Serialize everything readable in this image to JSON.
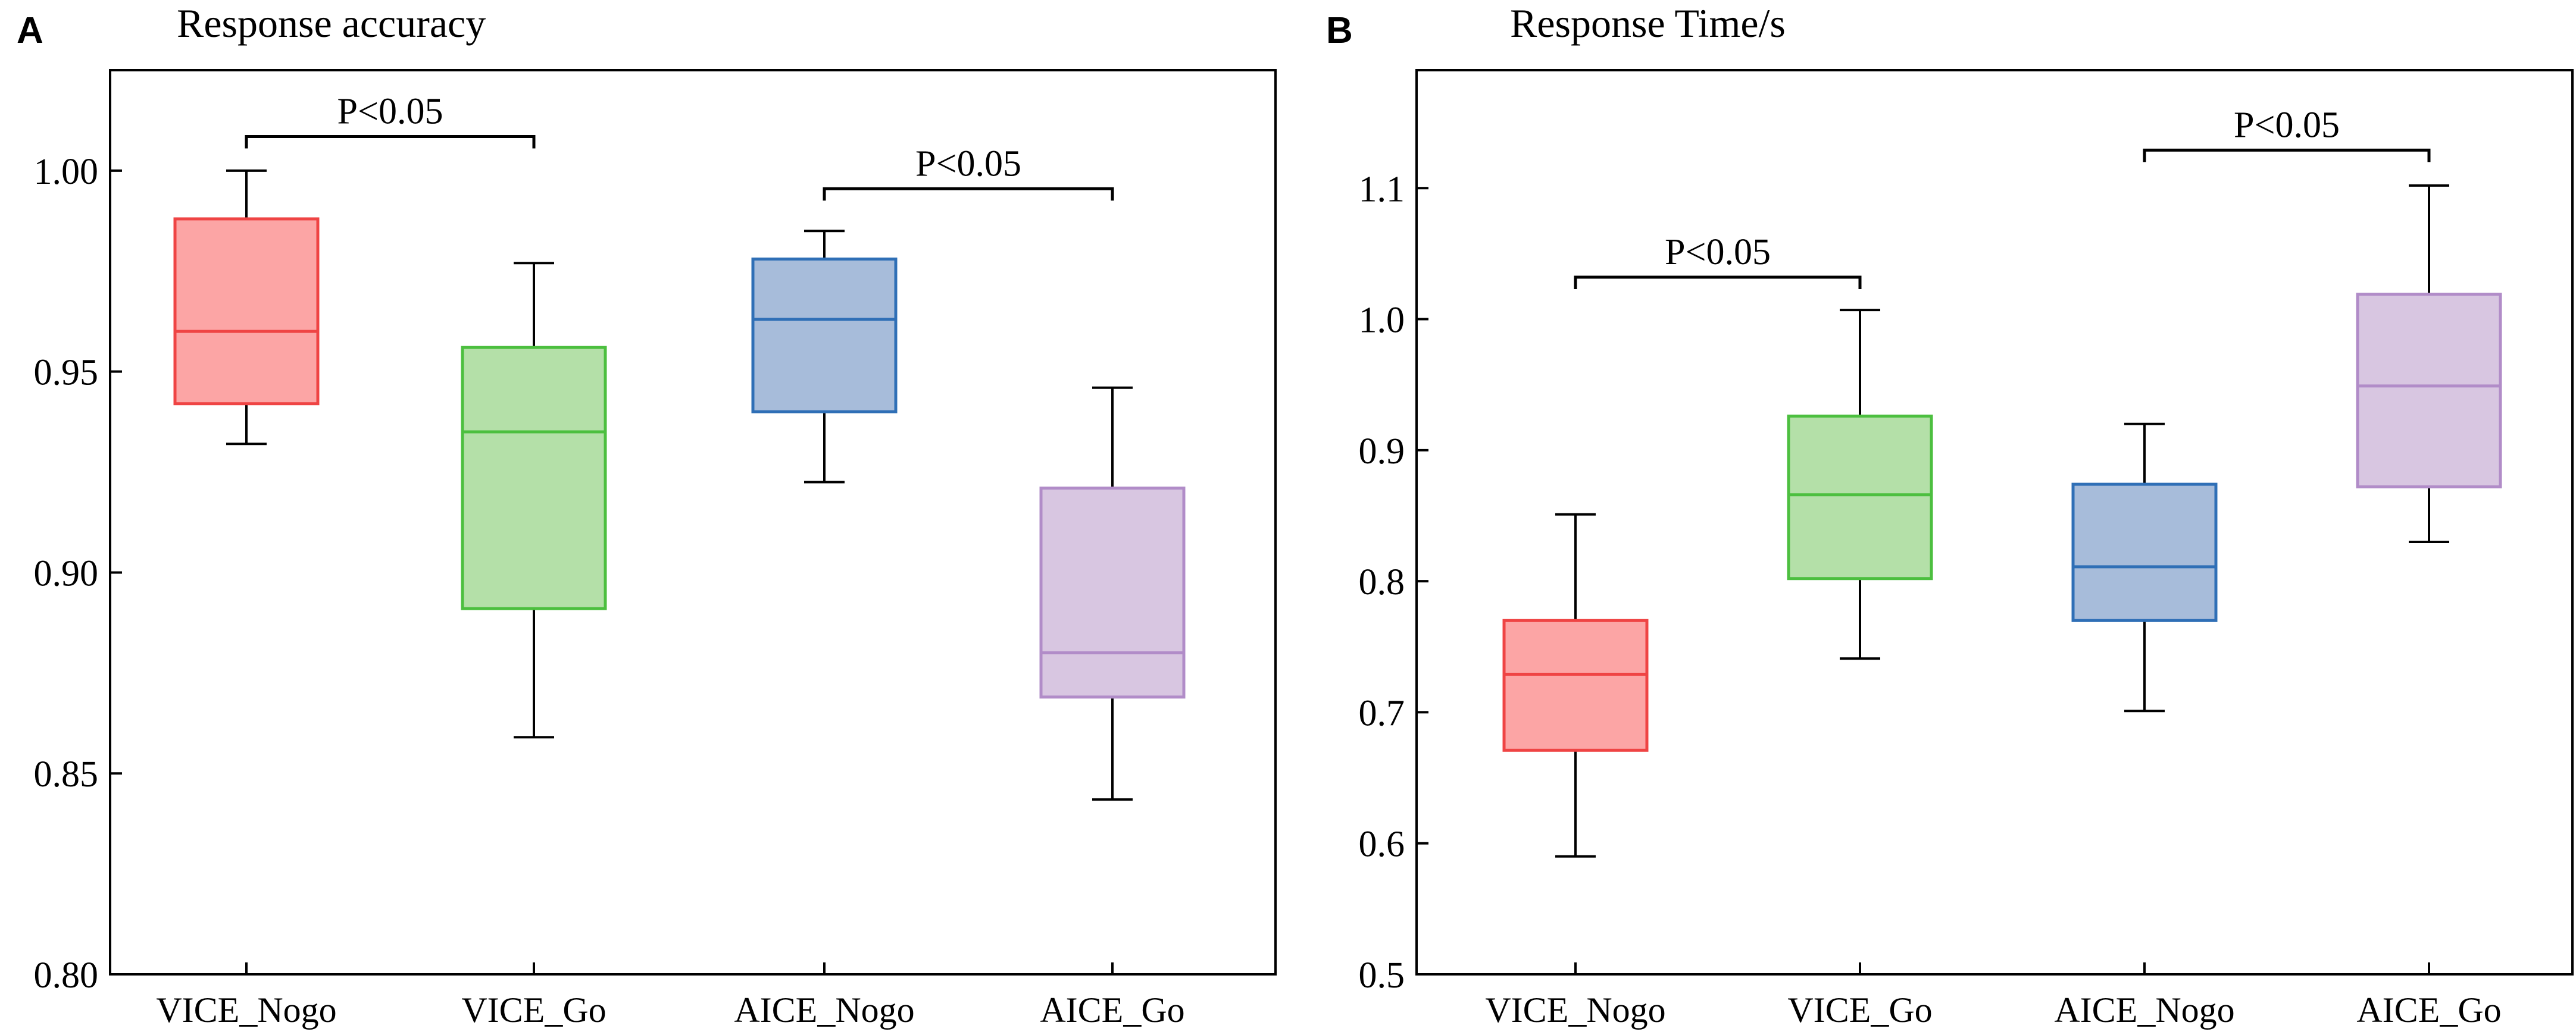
{
  "chart_data": [
    {
      "type": "boxplot",
      "panel_label": "A",
      "title": "Response accuracy",
      "xlabel": "",
      "ylabel": "",
      "ylim": [
        0.8,
        1.025
      ],
      "yticks": [
        0.8,
        0.85,
        0.9,
        0.95,
        1.0
      ],
      "ytick_labels": [
        "0.80",
        "0.85",
        "0.90",
        "0.95",
        "1.00"
      ],
      "categories": [
        "VICE_Nogo",
        "VICE_Go",
        "AICE_Nogo",
        "AICE_Go"
      ],
      "boxes": [
        {
          "name": "VICE_Nogo",
          "whisker_low": 0.932,
          "q1": 0.942,
          "median": 0.96,
          "q3": 0.988,
          "whisker_high": 1.0,
          "fill": "#fca5a5",
          "stroke": "#ef4444"
        },
        {
          "name": "VICE_Go",
          "whisker_low": 0.859,
          "q1": 0.891,
          "median": 0.935,
          "q3": 0.956,
          "whisker_high": 0.977,
          "fill": "#b4e0a8",
          "stroke": "#4cbf3f"
        },
        {
          "name": "AICE_Nogo",
          "whisker_low": 0.9225,
          "q1": 0.94,
          "median": 0.963,
          "q3": 0.978,
          "whisker_high": 0.985,
          "fill": "#a7bcda",
          "stroke": "#2f6fb6"
        },
        {
          "name": "AICE_Go",
          "whisker_low": 0.8435,
          "q1": 0.869,
          "median": 0.88,
          "q3": 0.921,
          "whisker_high": 0.946,
          "fill": "#d8c6e1",
          "stroke": "#b18cc8"
        }
      ],
      "annotations": [
        {
          "text": "P<0.05",
          "from": 0,
          "to": 1,
          "level": 1.0085
        },
        {
          "text": "P<0.05",
          "from": 2,
          "to": 3,
          "level": 0.9955
        }
      ]
    },
    {
      "type": "boxplot",
      "panel_label": "B",
      "title": "Response Time/s",
      "xlabel": "",
      "ylabel": "",
      "ylim": [
        0.5,
        1.19
      ],
      "yticks": [
        0.5,
        0.6,
        0.7,
        0.8,
        0.9,
        1.0,
        1.1
      ],
      "ytick_labels": [
        "0.5",
        "0.6",
        "0.7",
        "0.8",
        "0.9",
        "1.0",
        "1.1"
      ],
      "categories": [
        "VICE_Nogo",
        "VICE_Go",
        "AICE_Nogo",
        "AICE_Go"
      ],
      "boxes": [
        {
          "name": "VICE_Nogo",
          "whisker_low": 0.59,
          "q1": 0.671,
          "median": 0.729,
          "q3": 0.77,
          "whisker_high": 0.851,
          "fill": "#fca5a5",
          "stroke": "#ef4444"
        },
        {
          "name": "VICE_Go",
          "whisker_low": 0.741,
          "q1": 0.802,
          "median": 0.866,
          "q3": 0.926,
          "whisker_high": 1.007,
          "fill": "#b4e0a8",
          "stroke": "#4cbf3f"
        },
        {
          "name": "AICE_Nogo",
          "whisker_low": 0.701,
          "q1": 0.77,
          "median": 0.811,
          "q3": 0.874,
          "whisker_high": 0.92,
          "fill": "#a7bcda",
          "stroke": "#2f6fb6"
        },
        {
          "name": "AICE_Go",
          "whisker_low": 0.83,
          "q1": 0.872,
          "median": 0.949,
          "q3": 1.019,
          "whisker_high": 1.102,
          "fill": "#d8c6e1",
          "stroke": "#b18cc8"
        }
      ],
      "annotations": [
        {
          "text": "P<0.05",
          "from": 0,
          "to": 1,
          "level": 1.032
        },
        {
          "text": "P<0.05",
          "from": 2,
          "to": 3,
          "level": 1.129
        }
      ]
    }
  ]
}
